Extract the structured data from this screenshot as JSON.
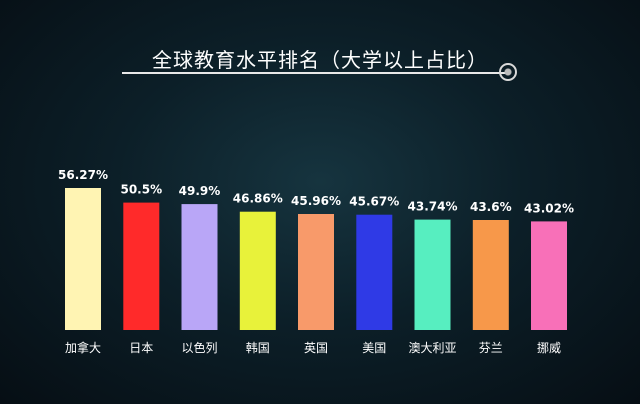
{
  "chart_data": {
    "type": "bar",
    "title": "全球教育水平排名（大学以上占比）",
    "categories": [
      "加拿大",
      "日本",
      "以色列",
      "韩国",
      "英国",
      "美国",
      "澳大利亚",
      "芬兰",
      "挪威"
    ],
    "values": [
      56.27,
      50.5,
      49.9,
      46.86,
      45.96,
      45.67,
      43.74,
      43.6,
      43.02
    ],
    "value_labels": [
      "56.27%",
      "50.5%",
      "49.9%",
      "46.86%",
      "45.96%",
      "45.67%",
      "43.74%",
      "43.6%",
      "43.02%"
    ],
    "colors": [
      "#fff4b3",
      "#ff2a2a",
      "#b9a6f7",
      "#e8f23a",
      "#f89a6a",
      "#2f3ae6",
      "#57eec0",
      "#f7984a",
      "#f870b8"
    ],
    "xlabel": "",
    "ylabel": "",
    "ylim": [
      0,
      56.27
    ],
    "grid": false,
    "legend": "none"
  }
}
